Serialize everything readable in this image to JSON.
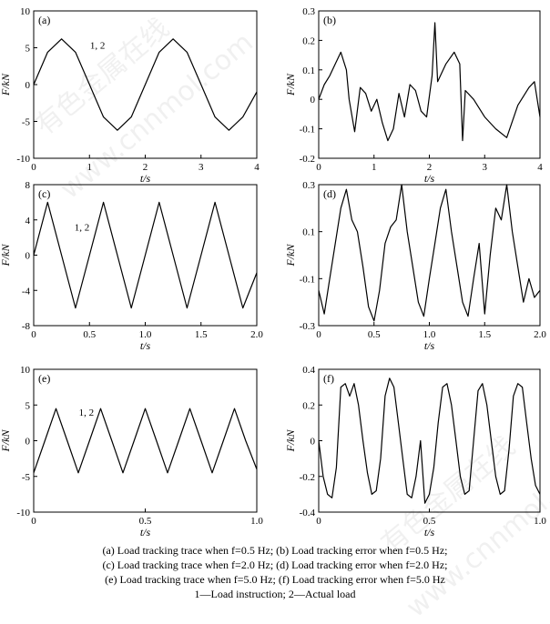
{
  "chart_data": [
    {
      "id": "a",
      "type": "line",
      "panel_label": "(a)",
      "xlabel": "t/s",
      "ylabel": "F/kN",
      "xlim": [
        0,
        4
      ],
      "ylim": [
        -10,
        10
      ],
      "xticks": [
        "0",
        "1",
        "2",
        "3",
        "4"
      ],
      "xtick_values": [
        0,
        1,
        2,
        3,
        4
      ],
      "yticks": [
        "-10",
        "-5",
        "0",
        "5",
        "10"
      ],
      "ytick_values": [
        -10,
        -5,
        0,
        5,
        10
      ],
      "annotation": "1, 2",
      "series": [
        {
          "values_x": [
            0,
            0.25,
            0.5,
            0.75,
            1.0,
            1.25,
            1.5,
            1.75,
            2.0,
            2.25,
            2.5,
            2.75,
            3.0,
            3.25,
            3.5,
            3.75,
            4.0
          ],
          "values_y": [
            0,
            4.4,
            6.2,
            4.4,
            0,
            -4.4,
            -6.2,
            -4.4,
            0,
            4.4,
            6.2,
            4.4,
            0,
            -4.4,
            -6.2,
            -4.4,
            -1
          ]
        }
      ]
    },
    {
      "id": "b",
      "type": "line",
      "panel_label": "(b)",
      "xlabel": "t/s",
      "ylabel": "F/kN",
      "xlim": [
        0,
        4
      ],
      "ylim": [
        -0.2,
        0.3
      ],
      "xticks": [
        "0",
        "1",
        "2",
        "3",
        "4"
      ],
      "xtick_values": [
        0,
        1,
        2,
        3,
        4
      ],
      "yticks": [
        "-0.2",
        "-0.1",
        "0",
        "0.1",
        "0.2",
        "0.3"
      ],
      "ytick_values": [
        -0.2,
        -0.1,
        0,
        0.1,
        0.2,
        0.3
      ],
      "series": [
        {
          "values_x": [
            0,
            0.1,
            0.2,
            0.3,
            0.4,
            0.5,
            0.55,
            0.65,
            0.75,
            0.85,
            0.95,
            1.05,
            1.15,
            1.25,
            1.35,
            1.45,
            1.55,
            1.65,
            1.75,
            1.85,
            1.95,
            2.05,
            2.1,
            2.15,
            2.3,
            2.45,
            2.55,
            2.6,
            2.65,
            2.8,
            3.0,
            3.2,
            3.4,
            3.6,
            3.8,
            3.9,
            4.0
          ],
          "values_y": [
            0.0,
            0.05,
            0.08,
            0.12,
            0.16,
            0.1,
            0.0,
            -0.11,
            0.04,
            0.02,
            -0.04,
            0.0,
            -0.08,
            -0.14,
            -0.1,
            0.02,
            -0.06,
            0.05,
            0.03,
            -0.04,
            -0.06,
            0.08,
            0.26,
            0.06,
            0.12,
            0.16,
            0.12,
            -0.14,
            0.03,
            0.0,
            -0.06,
            -0.1,
            -0.13,
            -0.02,
            0.04,
            0.06,
            -0.06
          ]
        }
      ]
    },
    {
      "id": "c",
      "type": "line",
      "panel_label": "(c)",
      "xlabel": "t/s",
      "ylabel": "F/kN",
      "xlim": [
        0,
        2.0
      ],
      "ylim": [
        -8,
        8
      ],
      "xticks": [
        "0",
        "0.5",
        "1.0",
        "1.5",
        "2.0"
      ],
      "xtick_values": [
        0,
        0.5,
        1.0,
        1.5,
        2.0
      ],
      "yticks": [
        "-8",
        "-4",
        "0",
        "4",
        "8"
      ],
      "ytick_values": [
        -8,
        -4,
        0,
        4,
        8
      ],
      "annotation": "1, 2",
      "series": [
        {
          "values_x": [
            0,
            0.125,
            0.25,
            0.375,
            0.5,
            0.625,
            0.75,
            0.875,
            1.0,
            1.125,
            1.25,
            1.375,
            1.5,
            1.625,
            1.75,
            1.875,
            2.0
          ],
          "values_y": [
            0,
            6,
            0,
            -6,
            0,
            6,
            0,
            -6,
            0,
            6,
            0,
            -6,
            0,
            6,
            0,
            -6,
            -2
          ]
        }
      ]
    },
    {
      "id": "d",
      "type": "line",
      "panel_label": "(d)",
      "xlabel": "t/s",
      "ylabel": "F/kN",
      "xlim": [
        0,
        2.0
      ],
      "ylim": [
        -0.3,
        0.3
      ],
      "xticks": [
        "0",
        "0.5",
        "1.0",
        "1.5",
        "2.0"
      ],
      "xtick_values": [
        0,
        0.5,
        1.0,
        1.5,
        2.0
      ],
      "yticks": [
        "-0.3",
        "-0.1",
        "0.1",
        "0.3"
      ],
      "ytick_values": [
        -0.3,
        -0.1,
        0.1,
        0.3
      ],
      "series": [
        {
          "values_x": [
            0,
            0.05,
            0.1,
            0.15,
            0.2,
            0.25,
            0.3,
            0.35,
            0.4,
            0.45,
            0.5,
            0.55,
            0.6,
            0.65,
            0.7,
            0.75,
            0.8,
            0.85,
            0.9,
            0.95,
            1.0,
            1.05,
            1.1,
            1.15,
            1.2,
            1.25,
            1.3,
            1.35,
            1.4,
            1.45,
            1.5,
            1.55,
            1.6,
            1.65,
            1.7,
            1.75,
            1.8,
            1.85,
            1.9,
            1.95,
            2.0
          ],
          "values_y": [
            -0.15,
            -0.25,
            -0.1,
            0.05,
            0.2,
            0.28,
            0.15,
            0.1,
            -0.05,
            -0.22,
            -0.28,
            -0.15,
            0.05,
            0.12,
            0.15,
            0.3,
            0.1,
            -0.05,
            -0.2,
            -0.26,
            -0.1,
            0.05,
            0.2,
            0.28,
            0.1,
            -0.05,
            -0.2,
            -0.26,
            -0.1,
            0.05,
            -0.25,
            0.0,
            0.2,
            0.15,
            0.3,
            0.1,
            -0.05,
            -0.2,
            -0.1,
            -0.18,
            -0.15
          ]
        }
      ]
    },
    {
      "id": "e",
      "type": "line",
      "panel_label": "(e)",
      "xlabel": "t/s",
      "ylabel": "F/kN",
      "xlim": [
        0,
        1.0
      ],
      "ylim": [
        -10,
        10
      ],
      "xticks": [
        "0",
        "0.5",
        "1.0"
      ],
      "xtick_values": [
        0,
        0.5,
        1.0
      ],
      "yticks": [
        "-10",
        "-5",
        "0",
        "5",
        "10"
      ],
      "ytick_values": [
        -10,
        -5,
        0,
        5,
        10
      ],
      "annotation": "1, 2",
      "series": [
        {
          "values_x": [
            0,
            0.05,
            0.1,
            0.15,
            0.2,
            0.25,
            0.3,
            0.35,
            0.4,
            0.45,
            0.5,
            0.55,
            0.6,
            0.65,
            0.7,
            0.75,
            0.8,
            0.85,
            0.9,
            0.95,
            1.0
          ],
          "values_y": [
            -4.5,
            0,
            4.5,
            0,
            -4.5,
            0,
            4.5,
            0,
            -4.5,
            0,
            4.5,
            0,
            -4.5,
            0,
            4.5,
            0,
            -4.5,
            0,
            4.5,
            0,
            -4
          ]
        }
      ]
    },
    {
      "id": "f",
      "type": "line",
      "panel_label": "(f)",
      "xlabel": "t/s",
      "ylabel": "F/kN",
      "xlim": [
        0,
        1.0
      ],
      "ylim": [
        -0.4,
        0.4
      ],
      "xticks": [
        "0",
        "0.5",
        "1.0"
      ],
      "xtick_values": [
        0,
        0.5,
        1.0
      ],
      "yticks": [
        "-0.4",
        "-0.2",
        "0",
        "0.2",
        "0.4"
      ],
      "ytick_values": [
        -0.4,
        -0.2,
        0,
        0.2,
        0.4
      ],
      "series": [
        {
          "values_x": [
            0,
            0.02,
            0.04,
            0.06,
            0.08,
            0.1,
            0.12,
            0.14,
            0.16,
            0.18,
            0.2,
            0.22,
            0.24,
            0.26,
            0.28,
            0.3,
            0.32,
            0.34,
            0.36,
            0.38,
            0.4,
            0.42,
            0.44,
            0.46,
            0.48,
            0.5,
            0.52,
            0.54,
            0.56,
            0.58,
            0.6,
            0.62,
            0.64,
            0.66,
            0.68,
            0.7,
            0.72,
            0.74,
            0.76,
            0.78,
            0.8,
            0.82,
            0.84,
            0.86,
            0.88,
            0.9,
            0.92,
            0.94,
            0.96,
            0.98,
            1.0
          ],
          "values_y": [
            0.0,
            -0.2,
            -0.3,
            -0.32,
            -0.15,
            0.3,
            0.32,
            0.25,
            0.32,
            0.2,
            0.0,
            -0.18,
            -0.3,
            -0.28,
            -0.1,
            0.25,
            0.35,
            0.3,
            0.1,
            -0.1,
            -0.3,
            -0.32,
            -0.2,
            0.0,
            -0.35,
            -0.3,
            -0.15,
            0.1,
            0.3,
            0.32,
            0.2,
            0.0,
            -0.2,
            -0.3,
            -0.28,
            0.0,
            0.28,
            0.32,
            0.2,
            0.0,
            -0.2,
            -0.3,
            -0.28,
            -0.05,
            0.25,
            0.32,
            0.3,
            0.1,
            -0.1,
            -0.25,
            -0.3
          ]
        }
      ]
    }
  ],
  "caption": {
    "line1": "(a) Load tracking trace when f=0.5 Hz; (b) Load tracking error when f=0.5 Hz;",
    "line2": "(c) Load tracking trace when f=2.0 Hz; (d) Load tracking error when f=2.0 Hz;",
    "line3": "(e) Load tracking trace when f=5.0 Hz; (f) Load tracking error when f=5.0 Hz",
    "line4": "1—Load instruction; 2—Actual load"
  },
  "watermark": {
    "text_1": "有色金属在线",
    "text_2": "www.cnnmol.com"
  }
}
